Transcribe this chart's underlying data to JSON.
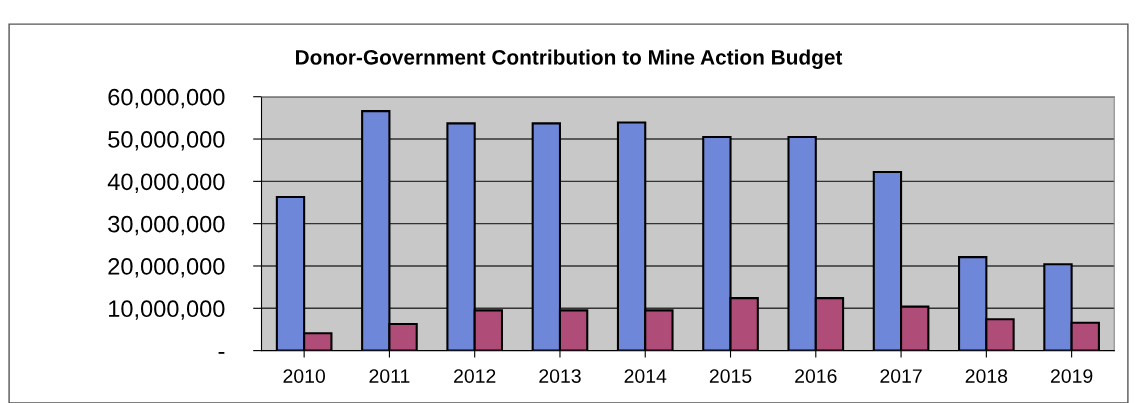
{
  "chart_data": {
    "type": "bar",
    "title": "Donor-Government Contribution to Mine Action Budget",
    "categories": [
      "2010",
      "2011",
      "2012",
      "2013",
      "2014",
      "2015",
      "2016",
      "2017",
      "2018",
      "2019"
    ],
    "series": [
      {
        "color": "#6f87d8",
        "values": [
          36300000,
          56600000,
          53700000,
          53700000,
          53900000,
          50500000,
          50500000,
          42200000,
          22100000,
          20400000
        ]
      },
      {
        "color": "#b04c78",
        "values": [
          4100000,
          6300000,
          9500000,
          9500000,
          9500000,
          12400000,
          12400000,
          10400000,
          7400000,
          6600000
        ]
      }
    ],
    "ylim": [
      0,
      60000000
    ],
    "yticks": [
      {
        "value": 0,
        "label": "-"
      },
      {
        "value": 10000000,
        "label": "10,000,000"
      },
      {
        "value": 20000000,
        "label": "20,000,000"
      },
      {
        "value": 30000000,
        "label": "30,000,000"
      },
      {
        "value": 40000000,
        "label": "40,000,000"
      },
      {
        "value": 50000000,
        "label": "50,000,000"
      },
      {
        "value": 60000000,
        "label": "60,000,000"
      }
    ],
    "grid": "y"
  }
}
